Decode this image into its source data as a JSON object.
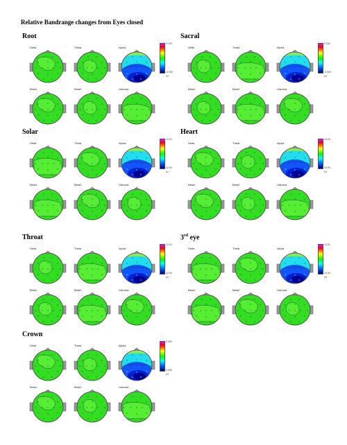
{
  "title": "Relative Bandrange changes from Eyes closed",
  "bands": [
    "Delta",
    "Theta",
    "Alpha",
    "Beta1",
    "Beta2",
    "Gamma"
  ],
  "colors": {
    "green": "#33dd22",
    "blue": "#1155ff",
    "cyan": "#22ddee",
    "navy": "#000090",
    "magenta": "#ff00ff"
  },
  "panels": [
    {
      "name": "Root",
      "sup": "",
      "colorbar": {
        "top": "0.193",
        "bottom": "-0.000",
        "unit": "uV"
      }
    },
    {
      "name": "Sacral",
      "sup": "",
      "colorbar": {
        "top": "0.002",
        "bottom": "-0.000",
        "unit": "uV"
      }
    },
    {
      "name": "Solar",
      "sup": "",
      "colorbar": {
        "top": "12.13",
        "bottom": "12.00",
        "unit": "uV"
      }
    },
    {
      "name": "Heart",
      "sup": "",
      "colorbar": {
        "top": "15.18",
        "bottom": "15.00",
        "unit": "uV"
      }
    },
    {
      "name": "Throat",
      "sup": "",
      "colorbar": {
        "top": "12.13",
        "bottom": "12.00",
        "unit": "uV"
      }
    },
    {
      "name": "3",
      "sup": "rd",
      "suffix": " eye",
      "colorbar": {
        "top": "10.01",
        "bottom": "10.00",
        "unit": "uV"
      }
    },
    {
      "name": "Crown",
      "sup": "",
      "colorbar": {
        "top": "0.009",
        "bottom": "0.000",
        "unit": "uV"
      }
    }
  ]
}
